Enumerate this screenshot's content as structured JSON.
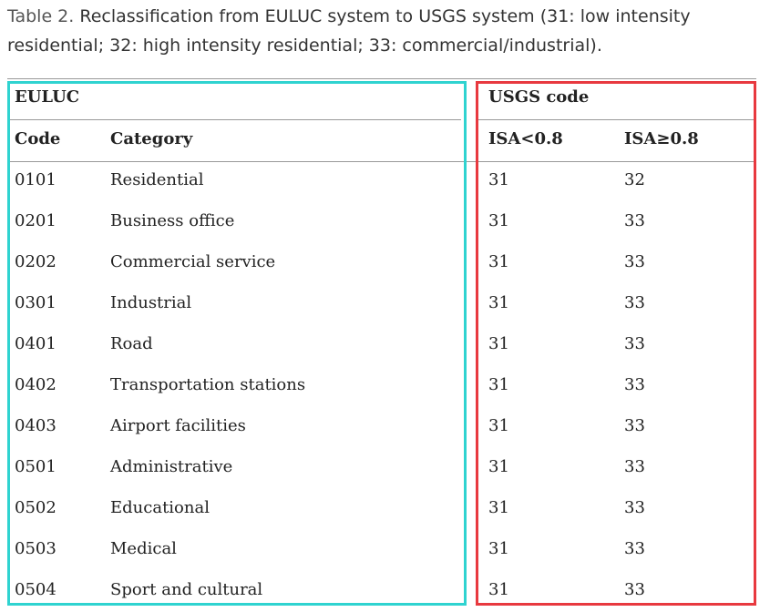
{
  "caption": {
    "label": "Table 2.",
    "text": "Reclassification from EULUC system to USGS system (31: low intensity residential; 32: high intensity residential; 33: commercial/industrial)."
  },
  "table": {
    "groups": [
      "EULUC",
      "USGS code"
    ],
    "columns": [
      "Code",
      "Category",
      "ISA<0.8",
      "ISA≥0.8"
    ],
    "rows": [
      [
        "0101",
        "Residential",
        31,
        32
      ],
      [
        "0201",
        "Business office",
        31,
        33
      ],
      [
        "0202",
        "Commercial service",
        31,
        33
      ],
      [
        "0301",
        "Industrial",
        31,
        33
      ],
      [
        "0401",
        "Road",
        31,
        33
      ],
      [
        "0402",
        "Transportation stations",
        31,
        33
      ],
      [
        "0403",
        "Airport facilities",
        31,
        33
      ],
      [
        "0501",
        "Administrative",
        31,
        33
      ],
      [
        "0502",
        "Educational",
        31,
        33
      ],
      [
        "0503",
        "Medical",
        31,
        33
      ],
      [
        "0504",
        "Sport and cultural",
        31,
        33
      ]
    ]
  }
}
